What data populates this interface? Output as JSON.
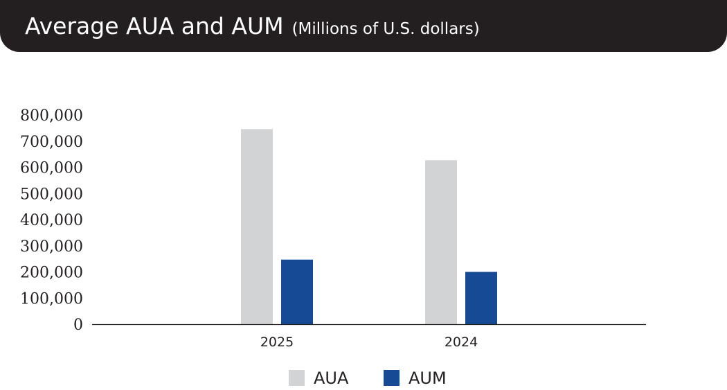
{
  "header": {
    "title": "Average AUA and AUM",
    "subtitle": "(Millions of U.S. dollars)"
  },
  "colors": {
    "header_bg": "#231f20",
    "aua": "#d1d3d4",
    "aum": "#174a94",
    "axis": "#231f20"
  },
  "chart_data": {
    "type": "bar",
    "title": "Average AUA and AUM",
    "subtitle": "(Millions of U.S. dollars)",
    "categories": [
      "2025",
      "2024"
    ],
    "series": [
      {
        "name": "AUA",
        "values": [
          746000,
          627000
        ]
      },
      {
        "name": "AUM",
        "values": [
          247000,
          200000
        ]
      }
    ],
    "yticks": [
      "0",
      "100,000",
      "200,000",
      "300,000",
      "400,000",
      "500,000",
      "600,000",
      "700,000",
      "800,000"
    ],
    "ylim": [
      0,
      800000
    ],
    "grid": false,
    "legend": "bottom-center",
    "xlabel": "",
    "ylabel": ""
  }
}
